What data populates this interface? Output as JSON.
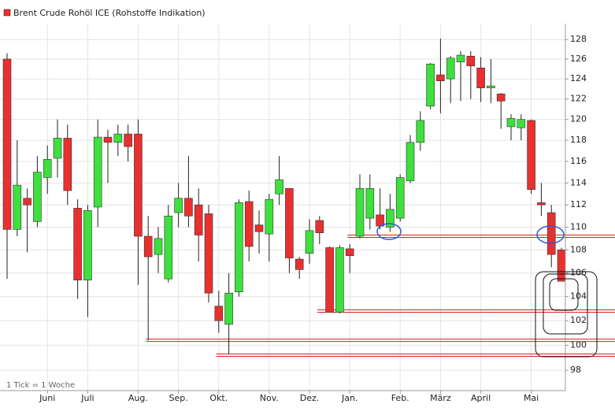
{
  "chart_data": {
    "type": "candlestick",
    "title": "Brent Crude Rohöl ICE (Rohstoffe Indikation)",
    "note": "1 Tick = 1 Woche",
    "categories": [
      null,
      null,
      null,
      null,
      "Juni",
      null,
      null,
      null,
      "Juli",
      null,
      null,
      null,
      null,
      "Aug.",
      null,
      null,
      null,
      "Sep.",
      null,
      null,
      null,
      "Okt.",
      null,
      null,
      null,
      null,
      "Nov.",
      null,
      null,
      null,
      "Dez.",
      null,
      null,
      null,
      "Jan.",
      null,
      null,
      null,
      null,
      "Feb.",
      null,
      null,
      null,
      "März",
      null,
      null,
      null,
      "April",
      null,
      null,
      null,
      null,
      "Mai",
      null,
      null,
      null
    ],
    "open": [
      126,
      109.8,
      112.6,
      110.5,
      114.5,
      116.3,
      118.2,
      111.7,
      105.4,
      111.8,
      118.3,
      117.8,
      118.6,
      118.6,
      109.2,
      107.6,
      105.5,
      111.3,
      112.6,
      112,
      111.2,
      103.2,
      101.7,
      104.4,
      112.3,
      110.2,
      109.4,
      113,
      113.5,
      107.2,
      107.7,
      110.6,
      108.2,
      102.7,
      108.1,
      109.2,
      110.8,
      111.1,
      110,
      110.8,
      114.2,
      117.8,
      121.3,
      124.4,
      124,
      125.7,
      126.3,
      125.1,
      123.1,
      122.5,
      119.3,
      119.2,
      119.9,
      112.2,
      111.3,
      108
    ],
    "high": [
      126.6,
      118,
      113.5,
      116.5,
      117.5,
      120,
      119.5,
      112.5,
      112,
      120,
      119,
      119.5,
      119.5,
      120,
      111,
      110,
      112,
      114,
      116.5,
      113.5,
      112,
      104.5,
      106,
      112.5,
      113.3,
      111.5,
      113,
      116.5,
      113.5,
      107.4,
      110.7,
      111,
      108.3,
      108.4,
      108.5,
      114.8,
      114.8,
      113.5,
      113,
      114.8,
      118.5,
      120.8,
      125.6,
      128.1,
      126.3,
      126.8,
      126.8,
      126.2,
      126,
      122.6,
      120.5,
      120.5,
      120,
      114,
      112,
      108.2
    ],
    "low": [
      105.5,
      109.2,
      107.8,
      110,
      113,
      114.5,
      112,
      103.8,
      102.3,
      110,
      114,
      116.5,
      116,
      105,
      100.4,
      106,
      105.2,
      110,
      110,
      107,
      103.5,
      101,
      99.3,
      104,
      107,
      107.7,
      107,
      112,
      106,
      105.5,
      106.8,
      108.5,
      102.7,
      102.6,
      106,
      109,
      109.8,
      109.8,
      109.6,
      110.5,
      114,
      117,
      121,
      120.6,
      121.6,
      121.8,
      122,
      121.7,
      121.6,
      119.1,
      118,
      118,
      113,
      111,
      106.5,
      105.3
    ],
    "close": [
      109.8,
      113.8,
      112,
      115,
      116.2,
      118.2,
      113.3,
      105.4,
      111.5,
      118.3,
      117.8,
      118.6,
      117.4,
      109.2,
      107.4,
      109,
      111,
      112.6,
      111,
      109.3,
      104.3,
      102,
      104.3,
      112.2,
      108.3,
      109.6,
      112.5,
      114.3,
      107.3,
      106.3,
      109.7,
      109.5,
      102.7,
      108.2,
      107.5,
      113.5,
      113.5,
      110.1,
      111.6,
      114.5,
      117.8,
      119.9,
      125.5,
      123.8,
      126.1,
      126.4,
      125.3,
      123.1,
      123.3,
      121.8,
      120.1,
      120,
      113.4,
      112,
      107.6,
      105.3
    ],
    "up_color": "#3de03d",
    "down_color": "#e8302f",
    "support_lines": [
      {
        "value": 109.2,
        "from": 34
      },
      {
        "value": 102.8,
        "from": 31
      },
      {
        "value": 100.4,
        "from": 14
      },
      {
        "value": 99.2,
        "from": 21
      }
    ],
    "line_color": "#d62020",
    "ylim": [
      96.4,
      129
    ],
    "ylog": true,
    "grid": true,
    "yticks": [
      98,
      100,
      102,
      104,
      106,
      108,
      110,
      112,
      114,
      116,
      118,
      120,
      122,
      124,
      126,
      128
    ]
  }
}
